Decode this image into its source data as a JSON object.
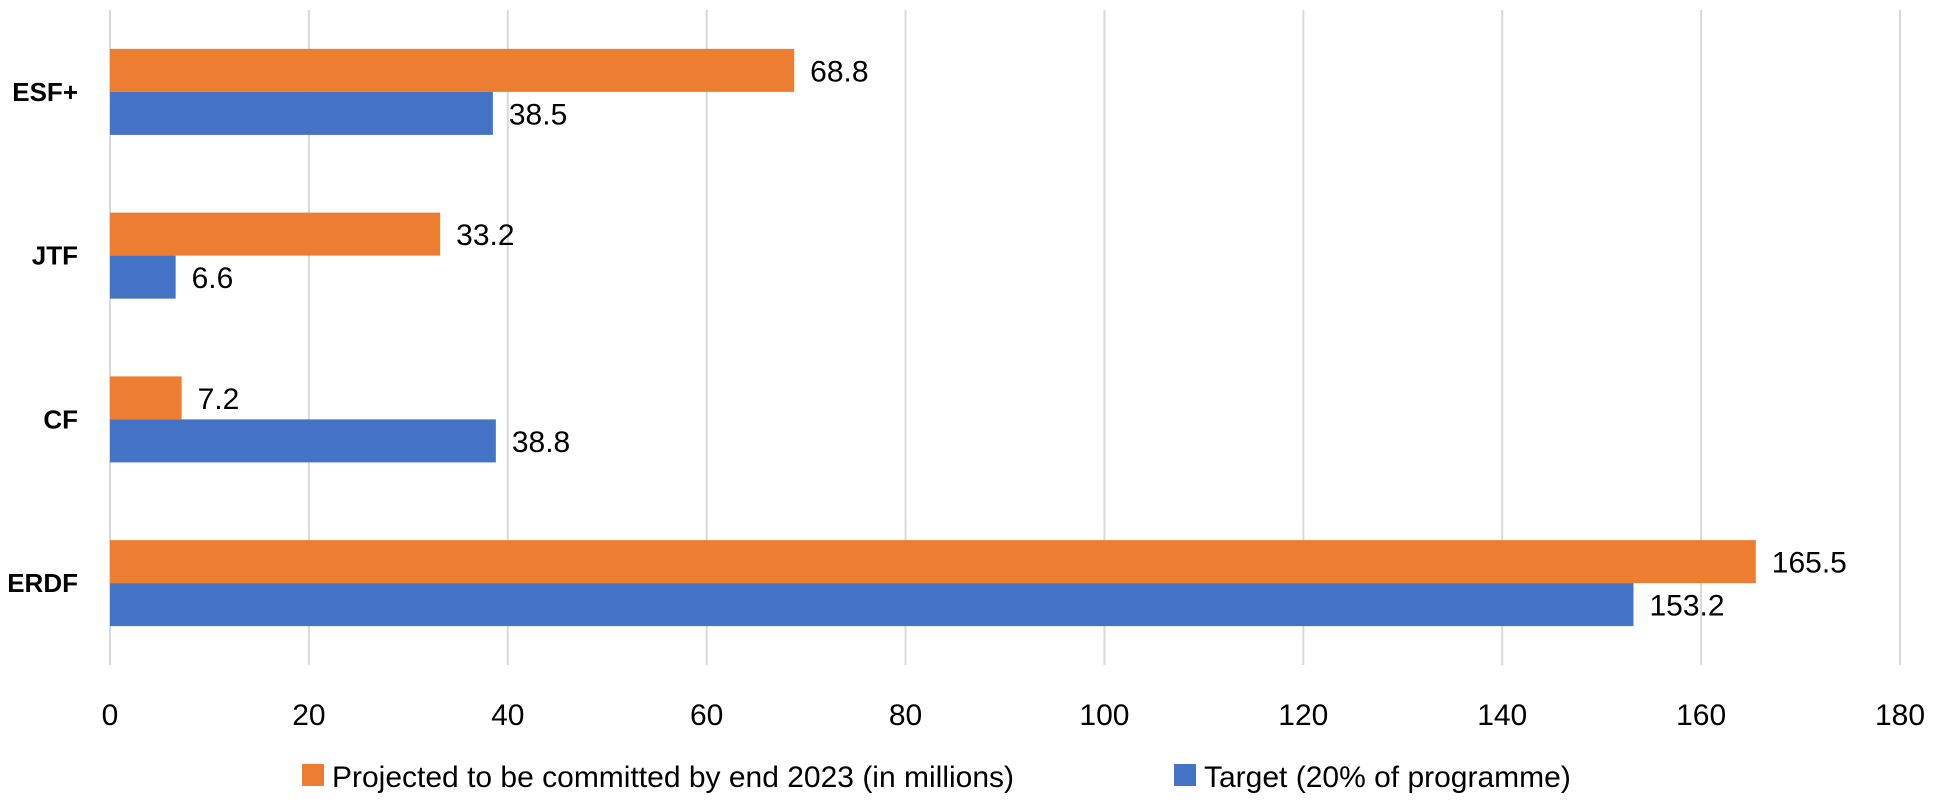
{
  "chart_data": {
    "type": "bar",
    "orientation": "horizontal",
    "categories": [
      "ESF+",
      "JTF",
      "CF",
      "ERDF"
    ],
    "series": [
      {
        "name": "Projected to be committed by end 2023 (in millions)",
        "color": "#ED7D31",
        "values": [
          68.8,
          33.2,
          7.2,
          165.5
        ]
      },
      {
        "name": "Target (20% of programme)",
        "color": "#4472C4",
        "values": [
          38.5,
          6.6,
          38.8,
          153.2
        ]
      }
    ],
    "xlim": [
      0,
      180
    ],
    "xticks": [
      "0",
      "20",
      "40",
      "60",
      "80",
      "100",
      "120",
      "140",
      "160",
      "180"
    ],
    "grid": true,
    "legend": "bottom",
    "data_labels": true
  }
}
